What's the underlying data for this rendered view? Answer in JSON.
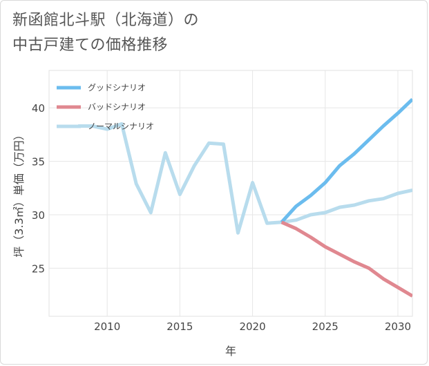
{
  "header": {
    "title_line1": "新函館北斗駅（北海道）の",
    "title_line2": "中古戸建ての価格推移"
  },
  "chart_data": {
    "type": "line",
    "title": "新函館北斗駅（北海道）の中古戸建ての価格推移",
    "xlabel": "年",
    "ylabel": "坪（3.3㎡）単価（万円）",
    "xlim": [
      2006,
      2031
    ],
    "ylim": [
      20.5,
      43.5
    ],
    "xticks": [
      2010,
      2015,
      2020,
      2025,
      2030
    ],
    "yticks": [
      25,
      30,
      35,
      40
    ],
    "grid": true,
    "legend_position": "top-left",
    "series": [
      {
        "name": "グッドシナリオ",
        "color": "#6bbcee",
        "x": [
          2022,
          2023,
          2024,
          2025,
          2026,
          2027,
          2028,
          2029,
          2030,
          2031
        ],
        "y": [
          29.3,
          30.8,
          31.8,
          33.0,
          34.6,
          35.7,
          37.0,
          38.3,
          39.5,
          40.8
        ]
      },
      {
        "name": "バッドシナリオ",
        "color": "#e08890",
        "x": [
          2022,
          2023,
          2024,
          2025,
          2026,
          2027,
          2028,
          2029,
          2030,
          2031
        ],
        "y": [
          29.3,
          28.7,
          27.9,
          27.0,
          26.3,
          25.6,
          25.0,
          24.0,
          23.2,
          22.4
        ]
      },
      {
        "name": "ノーマルシナリオ",
        "color": "#b8dced",
        "x": [
          2008,
          2009,
          2010,
          2011,
          2012,
          2013,
          2014,
          2015,
          2016,
          2017,
          2018,
          2019,
          2020,
          2021,
          2022,
          2023,
          2024,
          2025,
          2026,
          2027,
          2028,
          2029,
          2030,
          2031
        ],
        "y": [
          38.3,
          38.3,
          38.0,
          38.5,
          32.9,
          30.2,
          35.8,
          31.9,
          34.6,
          36.7,
          36.6,
          28.3,
          33.0,
          29.2,
          29.3,
          29.5,
          30.0,
          30.2,
          30.7,
          30.9,
          31.3,
          31.5,
          32.0,
          32.3
        ]
      }
    ]
  }
}
